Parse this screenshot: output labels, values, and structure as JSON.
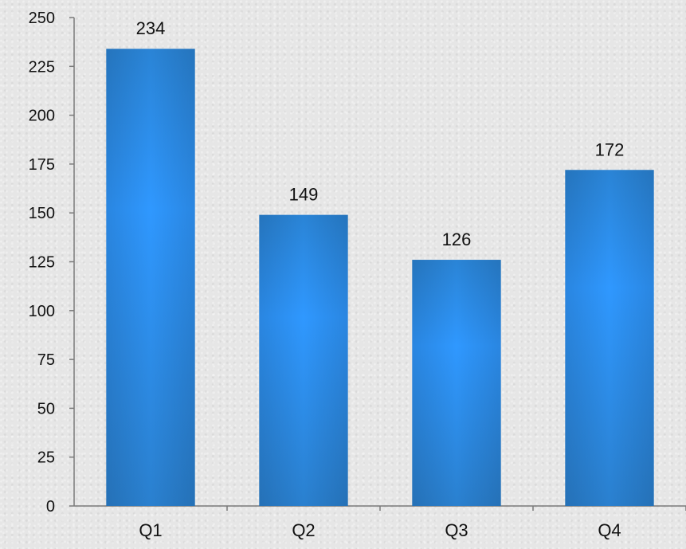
{
  "chart_data": {
    "type": "bar",
    "title": "",
    "xlabel": "",
    "ylabel": "",
    "categories": [
      "Q1",
      "Q2",
      "Q3",
      "Q4"
    ],
    "values": [
      234,
      149,
      126,
      172
    ],
    "data_labels": [
      "234",
      "149",
      "126",
      "172"
    ],
    "ylim": [
      0,
      250
    ],
    "yticks": [
      0,
      25,
      50,
      75,
      100,
      125,
      150,
      175,
      200,
      225,
      250
    ],
    "ytick_labels": [
      "0",
      "25",
      "50",
      "75",
      "100",
      "125",
      "150",
      "175",
      "200",
      "225",
      "250"
    ],
    "grid": false,
    "legend": "none",
    "bar_color": "#2a8ce0",
    "bar_highlight_color": "#2f9bff",
    "axis_color": "#7a7a7a"
  }
}
